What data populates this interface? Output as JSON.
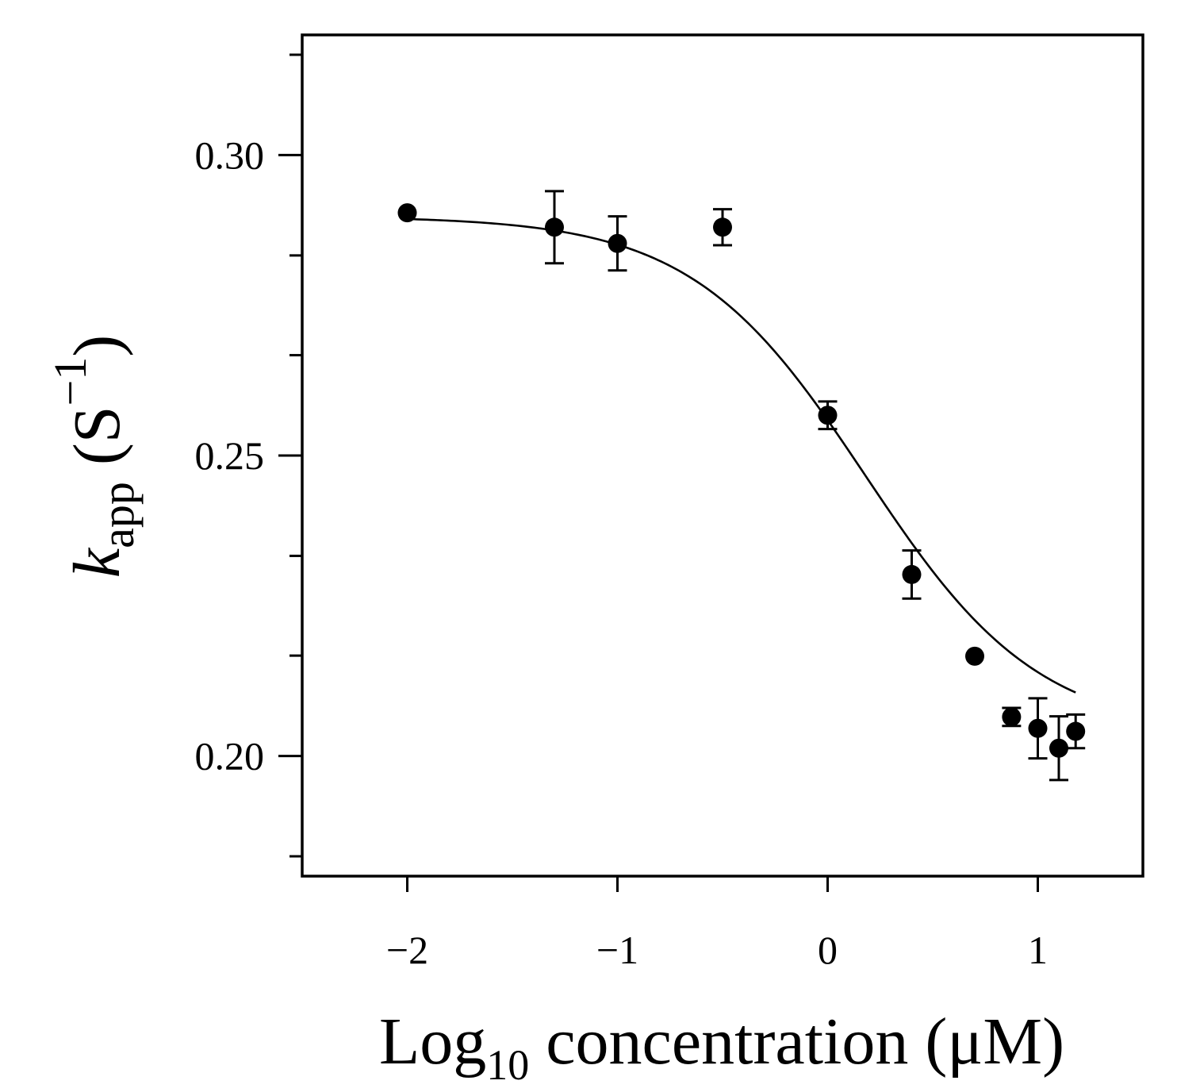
{
  "chart_data": {
    "type": "scatter",
    "title": "",
    "xlabel": {
      "main": "Log",
      "sub": "10",
      "rest": " concentration (μM)"
    },
    "ylabel": {
      "var": "k",
      "sub": "app",
      "unit_open": " (S",
      "sup": "−1",
      "unit_close": ")"
    },
    "xlim": [
      -2.5,
      1.5
    ],
    "ylim": [
      0.18,
      0.32
    ],
    "xticks": [
      {
        "value": -2,
        "label": "−2"
      },
      {
        "value": -1,
        "label": "−1"
      },
      {
        "value": 0,
        "label": "0"
      },
      {
        "value": 1,
        "label": "1"
      }
    ],
    "yticks": [
      {
        "value": 0.3,
        "label": "0.30"
      },
      {
        "value": 0.25,
        "label": "0.25"
      },
      {
        "value": 0.2,
        "label": "0.20"
      }
    ],
    "yminor": [
      0.3167,
      0.2833,
      0.2667,
      0.2333,
      0.2167,
      0.1833
    ],
    "series": [
      {
        "name": "data",
        "x": [
          -2.0,
          -1.3,
          -1.0,
          -0.5,
          0.0,
          0.4,
          0.7,
          0.875,
          1.0,
          1.1,
          1.18
        ],
        "y": [
          0.2904,
          0.288,
          0.2853,
          0.288,
          0.2567,
          0.2302,
          0.2166,
          0.2065,
          0.2046,
          0.2013,
          0.2041
        ],
        "err": [
          0,
          0.006,
          0.0045,
          0.003,
          0.0023,
          0.004,
          0,
          0.0015,
          0.005,
          0.0053,
          0.0028
        ]
      }
    ],
    "fit": {
      "type": "sigmoid",
      "top": 0.2898,
      "bottom": 0.2035,
      "x50": 0.18,
      "slope": 1.05
    }
  }
}
